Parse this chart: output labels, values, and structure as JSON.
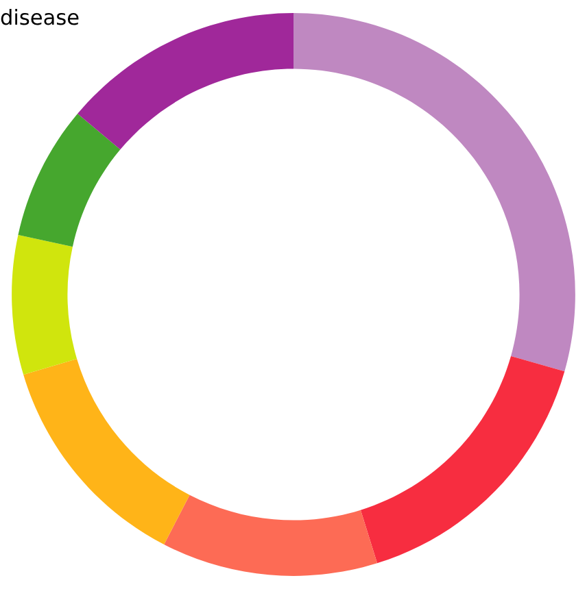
{
  "chart_data": {
    "type": "donut",
    "annotations": [
      "disease"
    ],
    "categories": [
      null,
      null,
      null,
      null,
      null,
      null,
      null
    ],
    "values": [
      29.4,
      15.8,
      12.4,
      12.8,
      8.0,
      7.7,
      13.9
    ],
    "colors": [
      "#bf88c1",
      "#f72d40",
      "#fd6b55",
      "#ffb418",
      "#d0e50d",
      "#46a72e",
      "#a0289a"
    ]
  }
}
